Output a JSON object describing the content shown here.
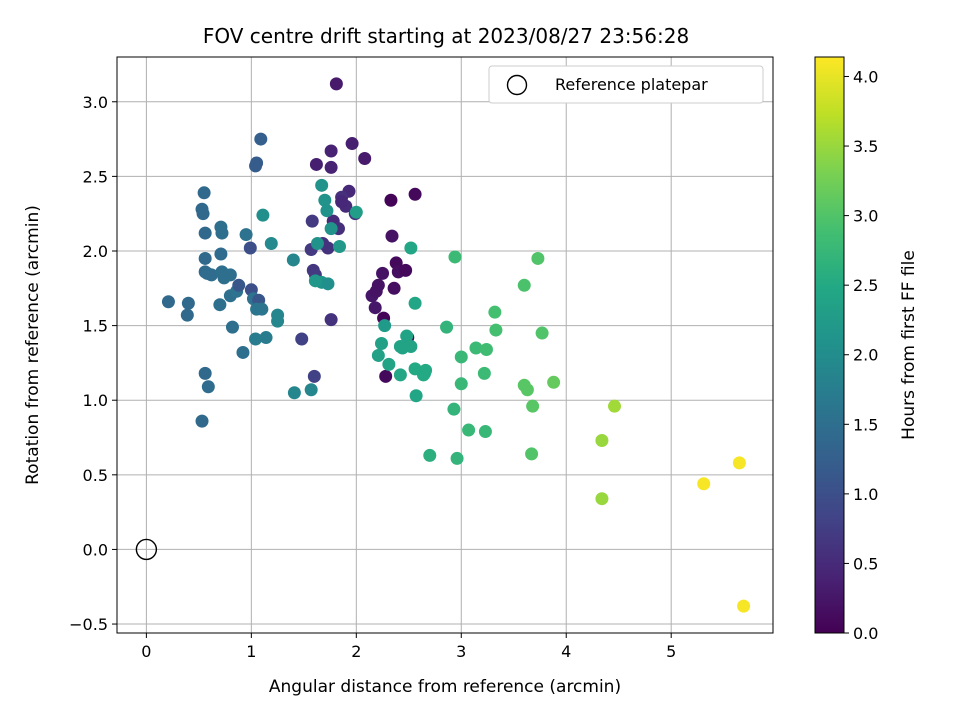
{
  "chart_data": {
    "type": "scatter",
    "title": "FOV centre drift starting at 2023/08/27 23:56:28",
    "xlabel": "Angular distance from reference (arcmin)",
    "ylabel": "Rotation from reference (arcmin)",
    "colorbar_label": "Hours from first FF file",
    "colormap": "viridis",
    "xlim": [
      -0.28,
      5.97
    ],
    "ylim": [
      -0.56,
      3.3
    ],
    "clim": [
      0.0,
      4.14
    ],
    "xticks": [
      0,
      1,
      2,
      3,
      4,
      5
    ],
    "xtick_labels": [
      "0",
      "1",
      "2",
      "3",
      "4",
      "5"
    ],
    "yticks": [
      -0.5,
      0.0,
      0.5,
      1.0,
      1.5,
      2.0,
      2.5,
      3.0
    ],
    "ytick_labels": [
      "−0.5",
      "0.0",
      "0.5",
      "1.0",
      "1.5",
      "2.0",
      "2.5",
      "3.0"
    ],
    "cticks": [
      0.0,
      0.5,
      1.0,
      1.5,
      2.0,
      2.5,
      3.0,
      3.5,
      4.0
    ],
    "ctick_labels": [
      "0.0",
      "0.5",
      "1.0",
      "1.5",
      "2.0",
      "2.5",
      "3.0",
      "3.5",
      "4.0"
    ],
    "grid": true,
    "legend": {
      "position": "upper right",
      "entries": [
        "Reference platepar"
      ]
    },
    "reference": {
      "x": 0.0,
      "y": 0.0,
      "marker": "open circle"
    },
    "points": [
      [
        1.81,
        3.12,
        0.3
      ],
      [
        1.96,
        2.72,
        0.35
      ],
      [
        1.76,
        2.67,
        0.4
      ],
      [
        2.08,
        2.62,
        0.3
      ],
      [
        1.62,
        2.58,
        0.35
      ],
      [
        1.76,
        2.56,
        0.4
      ],
      [
        1.93,
        2.4,
        0.45
      ],
      [
        1.86,
        2.36,
        0.55
      ],
      [
        1.9,
        2.3,
        0.5
      ],
      [
        1.86,
        2.33,
        0.45
      ],
      [
        2.33,
        2.34,
        0.05
      ],
      [
        2.56,
        2.38,
        0.1
      ],
      [
        1.78,
        2.2,
        0.5
      ],
      [
        1.58,
        2.2,
        0.7
      ],
      [
        1.83,
        2.15,
        0.55
      ],
      [
        1.99,
        2.25,
        0.6
      ],
      [
        2.34,
        2.1,
        0.2
      ],
      [
        1.68,
        2.05,
        0.6
      ],
      [
        1.57,
        2.01,
        0.7
      ],
      [
        1.73,
        2.02,
        0.6
      ],
      [
        2.38,
        1.92,
        0.1
      ],
      [
        2.25,
        1.85,
        0.2
      ],
      [
        2.4,
        1.86,
        0.15
      ],
      [
        2.47,
        1.87,
        0.1
      ],
      [
        1.59,
        1.87,
        0.65
      ],
      [
        1.61,
        1.84,
        0.7
      ],
      [
        2.21,
        1.77,
        0.2
      ],
      [
        2.36,
        1.75,
        0.15
      ],
      [
        2.15,
        1.7,
        0.25
      ],
      [
        2.19,
        1.73,
        0.2
      ],
      [
        2.18,
        1.62,
        0.25
      ],
      [
        2.26,
        1.55,
        0.05
      ],
      [
        1.76,
        1.54,
        0.6
      ],
      [
        1.48,
        1.41,
        0.8
      ],
      [
        2.49,
        1.42,
        0.05
      ],
      [
        2.28,
        1.16,
        0.1
      ],
      [
        1.6,
        1.16,
        0.8
      ],
      [
        1.09,
        2.75,
        1.25
      ],
      [
        1.05,
        2.59,
        1.2
      ],
      [
        1.04,
        2.57,
        1.2
      ],
      [
        0.55,
        2.39,
        1.4
      ],
      [
        0.53,
        2.28,
        1.4
      ],
      [
        0.54,
        2.25,
        1.4
      ],
      [
        0.56,
        2.12,
        1.4
      ],
      [
        0.71,
        2.16,
        1.5
      ],
      [
        0.72,
        2.12,
        1.5
      ],
      [
        0.95,
        2.11,
        1.55
      ],
      [
        0.99,
        2.02,
        1.0
      ],
      [
        0.71,
        1.98,
        1.45
      ],
      [
        0.56,
        1.95,
        1.4
      ],
      [
        0.56,
        1.86,
        1.4
      ],
      [
        0.58,
        1.85,
        1.45
      ],
      [
        0.62,
        1.84,
        1.45
      ],
      [
        0.72,
        1.86,
        1.5
      ],
      [
        0.74,
        1.82,
        1.5
      ],
      [
        0.8,
        1.84,
        1.5
      ],
      [
        0.8,
        1.7,
        1.5
      ],
      [
        0.86,
        1.73,
        1.55
      ],
      [
        0.88,
        1.77,
        1.1
      ],
      [
        1.0,
        1.74,
        1.0
      ],
      [
        0.21,
        1.66,
        1.4
      ],
      [
        0.4,
        1.65,
        1.4
      ],
      [
        0.39,
        1.57,
        1.4
      ],
      [
        0.7,
        1.64,
        1.5
      ],
      [
        1.02,
        1.68,
        1.55
      ],
      [
        1.07,
        1.67,
        1.1
      ],
      [
        1.05,
        1.61,
        1.6
      ],
      [
        1.1,
        1.61,
        1.6
      ],
      [
        0.82,
        1.49,
        1.5
      ],
      [
        0.92,
        1.32,
        1.5
      ],
      [
        1.04,
        1.41,
        1.7
      ],
      [
        1.14,
        1.42,
        1.7
      ],
      [
        0.56,
        1.18,
        1.4
      ],
      [
        0.59,
        1.09,
        1.45
      ],
      [
        0.53,
        0.86,
        1.4
      ],
      [
        1.11,
        2.24,
        2.05
      ],
      [
        1.19,
        2.05,
        1.95
      ],
      [
        1.25,
        1.57,
        1.9
      ],
      [
        1.25,
        1.53,
        1.9
      ],
      [
        1.4,
        1.94,
        1.9
      ],
      [
        1.41,
        1.05,
        1.9
      ],
      [
        1.57,
        1.07,
        1.9
      ],
      [
        1.67,
        2.44,
        2.1
      ],
      [
        1.7,
        2.34,
        2.1
      ],
      [
        1.72,
        2.27,
        2.1
      ],
      [
        1.76,
        2.15,
        2.1
      ],
      [
        1.63,
        2.05,
        2.1
      ],
      [
        1.84,
        2.03,
        2.2
      ],
      [
        2.0,
        2.26,
        2.3
      ],
      [
        1.67,
        1.79,
        2.1
      ],
      [
        1.73,
        1.78,
        2.05
      ],
      [
        1.61,
        1.8,
        2.2
      ],
      [
        2.27,
        1.5,
        2.25
      ],
      [
        2.21,
        1.3,
        2.35
      ],
      [
        2.24,
        1.38,
        2.35
      ],
      [
        2.31,
        1.24,
        2.4
      ],
      [
        2.42,
        1.36,
        2.4
      ],
      [
        2.48,
        1.43,
        2.4
      ],
      [
        2.44,
        1.35,
        2.4
      ],
      [
        2.52,
        1.36,
        2.4
      ],
      [
        2.42,
        1.17,
        2.45
      ],
      [
        2.56,
        1.21,
        2.5
      ],
      [
        2.65,
        1.18,
        2.5
      ],
      [
        2.66,
        1.2,
        2.5
      ],
      [
        2.64,
        1.17,
        2.5
      ],
      [
        2.57,
        1.03,
        2.45
      ],
      [
        2.52,
        2.02,
        2.45
      ],
      [
        2.56,
        1.65,
        2.45
      ],
      [
        2.7,
        0.63,
        2.6
      ],
      [
        2.86,
        1.49,
        2.7
      ],
      [
        2.93,
        0.94,
        2.7
      ],
      [
        2.96,
        0.61,
        2.7
      ],
      [
        2.94,
        1.96,
        2.8
      ],
      [
        3.0,
        1.29,
        2.75
      ],
      [
        3.0,
        1.11,
        2.75
      ],
      [
        3.07,
        0.8,
        2.75
      ],
      [
        3.14,
        1.35,
        2.8
      ],
      [
        3.22,
        1.18,
        2.8
      ],
      [
        3.23,
        0.79,
        2.75
      ],
      [
        3.24,
        1.34,
        2.85
      ],
      [
        3.32,
        1.59,
        2.9
      ],
      [
        3.33,
        1.47,
        2.9
      ],
      [
        3.6,
        1.77,
        2.95
      ],
      [
        3.73,
        1.95,
        3.0
      ],
      [
        3.77,
        1.45,
        3.0
      ],
      [
        3.6,
        1.1,
        3.05
      ],
      [
        3.63,
        1.07,
        3.05
      ],
      [
        3.68,
        0.96,
        3.05
      ],
      [
        3.67,
        0.64,
        3.0
      ],
      [
        3.88,
        1.12,
        3.15
      ],
      [
        4.34,
        0.73,
        3.5
      ],
      [
        4.46,
        0.96,
        3.55
      ],
      [
        4.34,
        0.34,
        3.5
      ],
      [
        5.31,
        0.44,
        4.1
      ],
      [
        5.65,
        0.58,
        4.1
      ],
      [
        5.69,
        -0.38,
        4.1
      ]
    ]
  }
}
